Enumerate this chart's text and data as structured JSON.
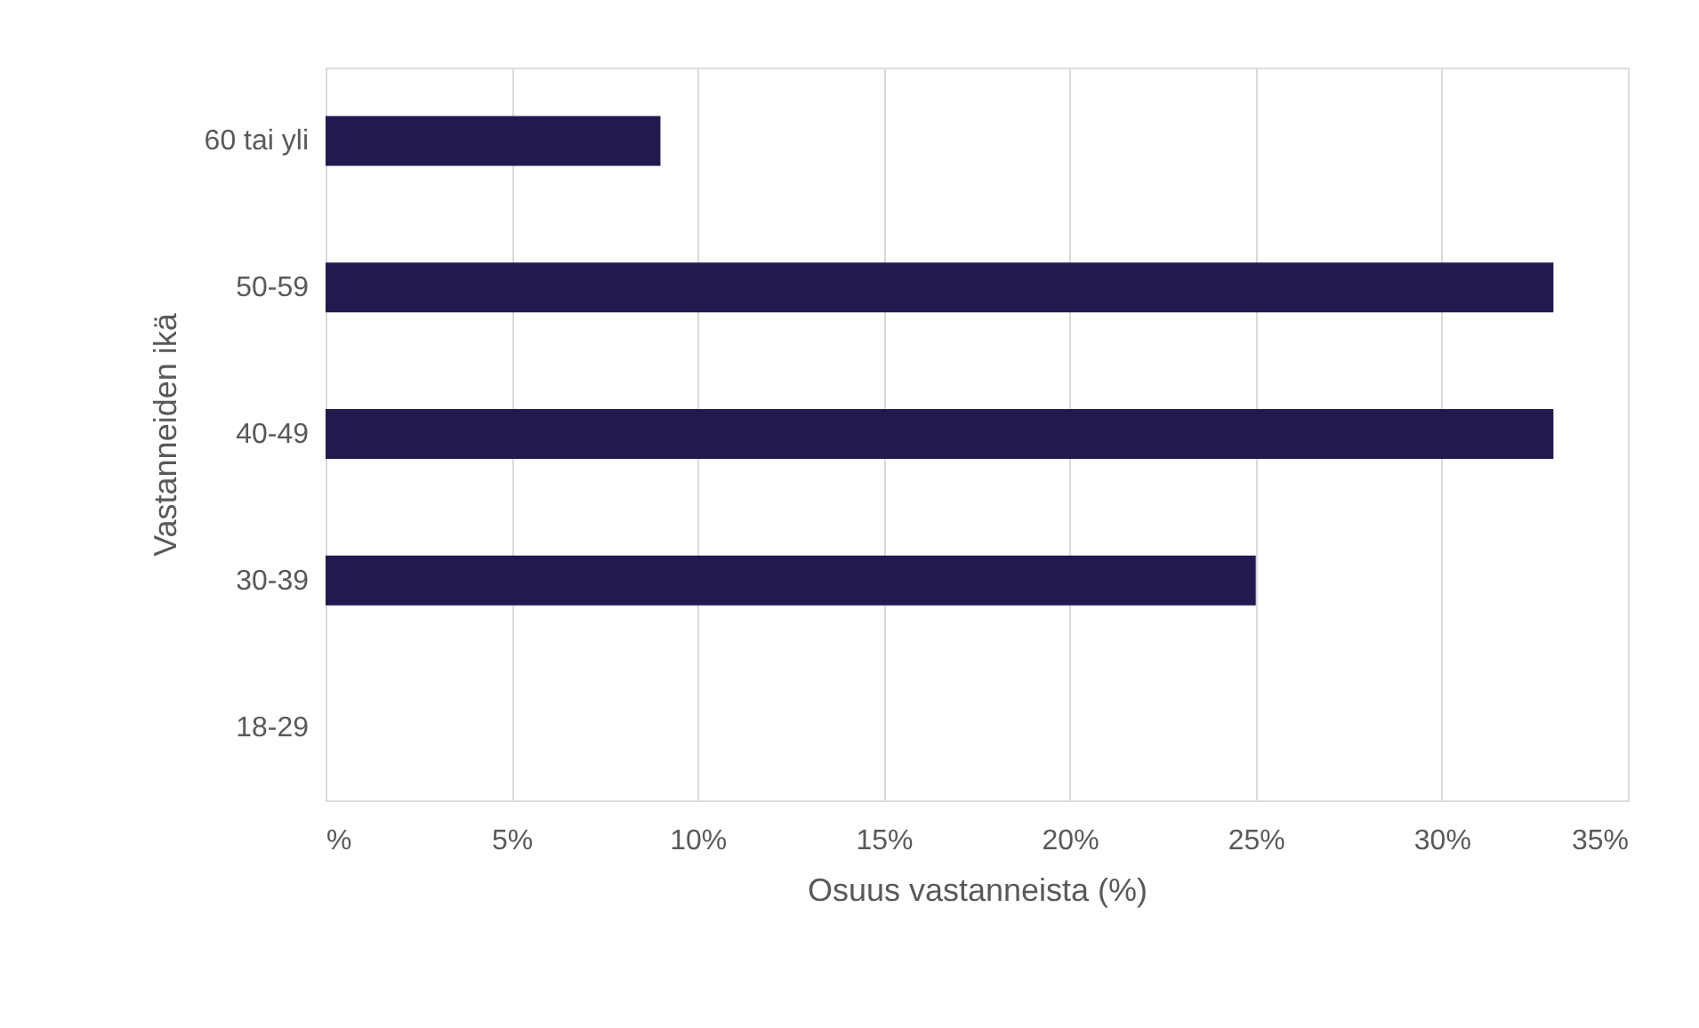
{
  "chart_data": {
    "type": "bar",
    "orientation": "horizontal",
    "xlabel": "Osuus vastanneista (%)",
    "ylabel": "Vastanneiden ikä",
    "categories": [
      "60 tai yli",
      "50-59",
      "40-49",
      "30-39",
      "18-29"
    ],
    "values": [
      9,
      33,
      33,
      25,
      0
    ],
    "color": "#201a4f",
    "xlim": [
      0,
      35
    ],
    "xticks": [
      {
        "value": 0,
        "label": "%"
      },
      {
        "value": 5,
        "label": "5%"
      },
      {
        "value": 10,
        "label": "10%"
      },
      {
        "value": 15,
        "label": "15%"
      },
      {
        "value": 20,
        "label": "20%"
      },
      {
        "value": 25,
        "label": "25%"
      },
      {
        "value": 30,
        "label": "30%"
      },
      {
        "value": 35,
        "label": "35%"
      }
    ],
    "grid": "x"
  }
}
